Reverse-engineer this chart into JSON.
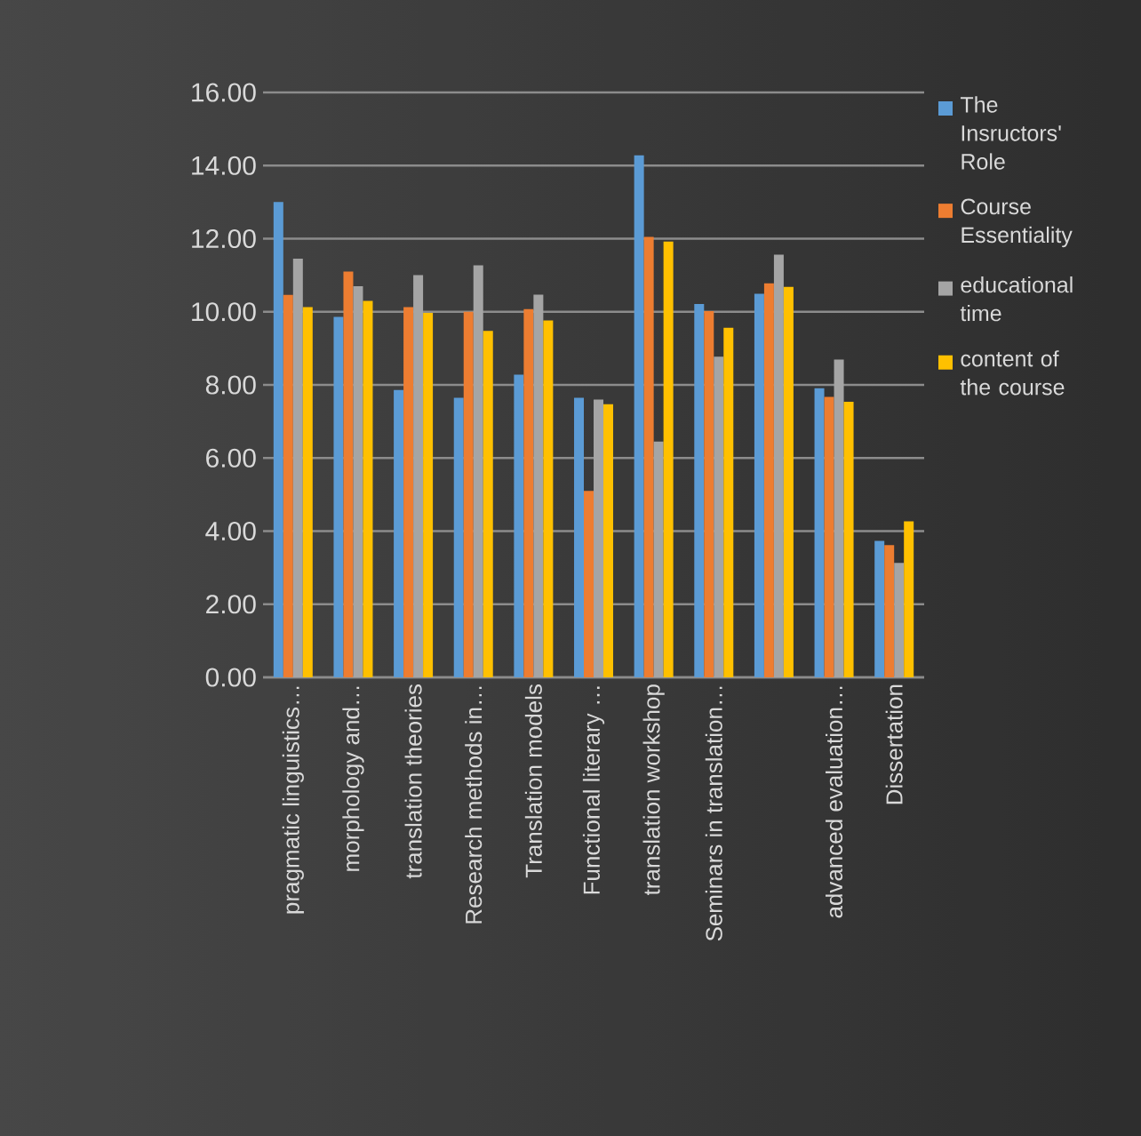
{
  "chart_data": {
    "type": "bar",
    "categories": [
      "pragmatic linguistics…",
      "morphology and…",
      "translation theories",
      "Research methods in…",
      "Translation models",
      "Functional literary …",
      "translation workshop",
      "Seminars in translation…",
      null,
      "advanced evaluation…",
      "Dissertation"
    ],
    "series": [
      {
        "name": "The Insructors' Role",
        "color": "#5b9bd5",
        "values": [
          13.0,
          9.86,
          7.86,
          7.65,
          8.28,
          7.65,
          14.28,
          10.21,
          10.49,
          7.91,
          3.73
        ]
      },
      {
        "name": "Course Essentiality",
        "color": "#ed7d31",
        "values": [
          10.46,
          11.1,
          10.13,
          10.0,
          10.07,
          5.1,
          12.05,
          10.02,
          10.78,
          7.67,
          3.62
        ]
      },
      {
        "name": "educational time",
        "color": "#a5a5a5",
        "values": [
          11.45,
          10.7,
          11.0,
          11.27,
          10.47,
          7.6,
          6.45,
          8.77,
          11.56,
          8.69,
          3.13
        ]
      },
      {
        "name": "content of the course",
        "color": "#ffc000",
        "values": [
          10.13,
          10.3,
          9.97,
          9.48,
          9.76,
          7.47,
          11.92,
          9.56,
          10.68,
          7.54,
          4.27
        ]
      }
    ],
    "ylim": [
      0,
      16
    ],
    "yticks": [
      {
        "value": 0,
        "label": "0.00"
      },
      {
        "value": 2,
        "label": "2.00"
      },
      {
        "value": 4,
        "label": "4.00"
      },
      {
        "value": 6,
        "label": "6.00"
      },
      {
        "value": 8,
        "label": "8.00"
      },
      {
        "value": 10,
        "label": "10.00"
      },
      {
        "value": 12,
        "label": "12.00"
      },
      {
        "value": 14,
        "label": "14.00"
      },
      {
        "value": 16,
        "label": "16.00"
      }
    ],
    "grid": "y",
    "legend": "right"
  }
}
